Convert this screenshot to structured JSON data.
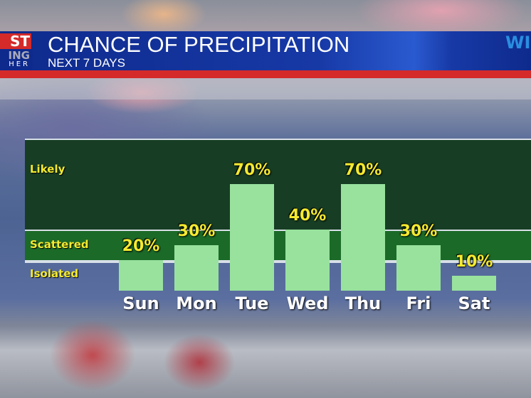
{
  "header": {
    "title": "CHANCE OF PRECIPITATION",
    "subtitle": "NEXT 7 DAYS",
    "logo_left": [
      "ST",
      "ING",
      "HER"
    ],
    "logo_right": "WI"
  },
  "chart_data": {
    "type": "bar",
    "categories": [
      "Sun",
      "Mon",
      "Tue",
      "Wed",
      "Thu",
      "Fri",
      "Sat"
    ],
    "values": [
      20,
      30,
      70,
      40,
      70,
      30,
      10
    ],
    "value_labels": [
      "20%",
      "30%",
      "70%",
      "40%",
      "70%",
      "30%",
      "10%"
    ],
    "ylim": [
      0,
      90
    ],
    "bands": [
      {
        "label": "Isolated",
        "from": 0,
        "to": 20,
        "color": "#1f9a2e"
      },
      {
        "label": "Scattered",
        "from": 20,
        "to": 40,
        "color": "#1b6a28"
      },
      {
        "label": "Likely",
        "from": 40,
        "to": 90,
        "color": "#173d24"
      }
    ],
    "bar_color": "#98e29e",
    "label_color": "#f4ea30"
  }
}
